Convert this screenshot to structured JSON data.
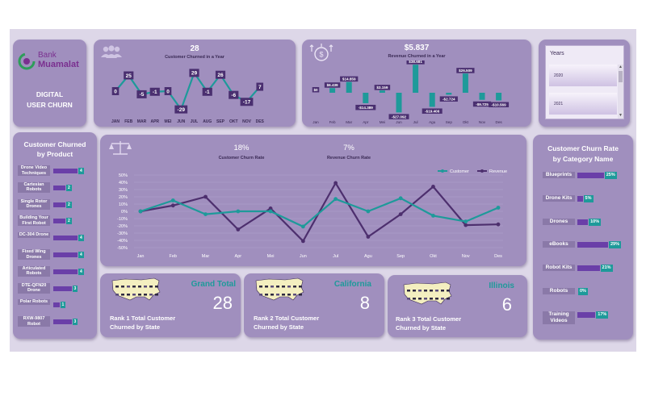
{
  "brand": {
    "line1": "Bank",
    "line2": "Muamalat",
    "title_line1": "DIGITAL",
    "title_line2": "USER CHURN"
  },
  "customer_year": {
    "total": "28",
    "title": "Customer Churned in a Year",
    "months": [
      "JAN",
      "FEB",
      "MAR",
      "APR",
      "MEI",
      "JUN",
      "JUL",
      "AUG",
      "SEP",
      "OKT",
      "NOV",
      "DES"
    ],
    "values": [
      0,
      25,
      -5,
      -1,
      0,
      -29,
      29,
      -1,
      26,
      -6,
      -17,
      7
    ]
  },
  "revenue_year": {
    "total": "$5.837",
    "title": "Revenue Churned in a Year",
    "months": [
      "Jan",
      "Feb",
      "Mar",
      "Apr",
      "Mei",
      "Jun",
      "Jul",
      "Agu",
      "Sep",
      "Okt",
      "Nov",
      "Des"
    ],
    "values": [
      0,
      6439,
      14859,
      -14389,
      3159,
      -27092,
      38681,
      -19406,
      -2724,
      26509,
      -9725,
      -10569
    ],
    "labels": [
      "$0",
      "$6.439",
      "$14.859",
      "-$14.389",
      "$3.159",
      "-$27.092",
      "$38.681",
      "-$19.406",
      "-$2.724",
      "$26.509",
      "-$9.725",
      "-$10.569"
    ]
  },
  "years": {
    "title": "Years",
    "options": [
      "2020",
      "2021"
    ]
  },
  "product": {
    "title_line1": "Customer Churned",
    "title_line2": "by Product",
    "items": [
      {
        "name": "Drone Video Techniques",
        "value": 4
      },
      {
        "name": "Cartesian Robots",
        "value": 2
      },
      {
        "name": "Single Rotor Drones",
        "value": 2
      },
      {
        "name": "Building Your First Robot",
        "value": 2
      },
      {
        "name": "DC-304 Drone",
        "value": 4
      },
      {
        "name": "Fixed Wing Drones",
        "value": 4
      },
      {
        "name": "Articulated Robots",
        "value": 4
      },
      {
        "name": "DTE-QFN20 Drone",
        "value": 3
      },
      {
        "name": "Polar Robots",
        "value": 1
      },
      {
        "name": "RXW-9807 Robot",
        "value": 3
      }
    ]
  },
  "rates": {
    "customer_rate": "18%",
    "customer_rate_label": "Customer Churn Rate",
    "revenue_rate": "7%",
    "revenue_rate_label": "Revenue Churn Rate"
  },
  "chart_data": {
    "type": "line",
    "x": [
      "Jan",
      "Feb",
      "Mar",
      "Apr",
      "Mei",
      "Jun",
      "Jul",
      "Agu",
      "Sep",
      "Okt",
      "Nov",
      "Des"
    ],
    "ylim": [
      -50,
      50
    ],
    "yticks": [
      "50%",
      "40%",
      "30%",
      "20%",
      "10%",
      "0%",
      "-10%",
      "-20%",
      "-30%",
      "-40%",
      "-50%"
    ],
    "legend_position": "top-right",
    "series": [
      {
        "name": "Customer",
        "color": "#1e9a9a",
        "values": [
          0,
          15,
          -4,
          0,
          0,
          -21,
          17,
          0,
          18,
          -6,
          -14,
          5
        ]
      },
      {
        "name": "Revenue",
        "color": "#4d2f6e",
        "values": [
          0,
          8,
          20,
          -25,
          4,
          -41,
          39,
          -35,
          -4,
          34,
          -19,
          -18
        ]
      }
    ]
  },
  "states": [
    {
      "name": "Grand Total",
      "value": "28",
      "caption_line1": "Rank 1 Total Customer",
      "caption_line2": "Churned by State"
    },
    {
      "name": "California",
      "value": "8",
      "caption_line1": "Rank 2 Total Customer",
      "caption_line2": "Churned by State"
    },
    {
      "name": "Illinois",
      "value": "6",
      "caption_line1": "Rank 3 Total Customer",
      "caption_line2": "Churned by State"
    }
  ],
  "category": {
    "title_line1": "Customer Churn Rate",
    "title_line2": "by Category Name",
    "items": [
      {
        "name": "Blueprints",
        "value": 25,
        "label": "25%"
      },
      {
        "name": "Drone Kits",
        "value": 5,
        "label": "5%"
      },
      {
        "name": "Drones",
        "value": 10,
        "label": "10%"
      },
      {
        "name": "eBooks",
        "value": 29,
        "label": "29%"
      },
      {
        "name": "Robot Kits",
        "value": 21,
        "label": "21%"
      },
      {
        "name": "Robots",
        "value": 0,
        "label": "0%"
      },
      {
        "name": "Training Videos",
        "value": 17,
        "label": "17%"
      }
    ]
  },
  "colors": {
    "teal": "#1e9a9a",
    "purple": "#6a3fa8",
    "dark_purple": "#4d2f6e",
    "card": "#a08fbe",
    "panel": "#ddd7e8"
  }
}
